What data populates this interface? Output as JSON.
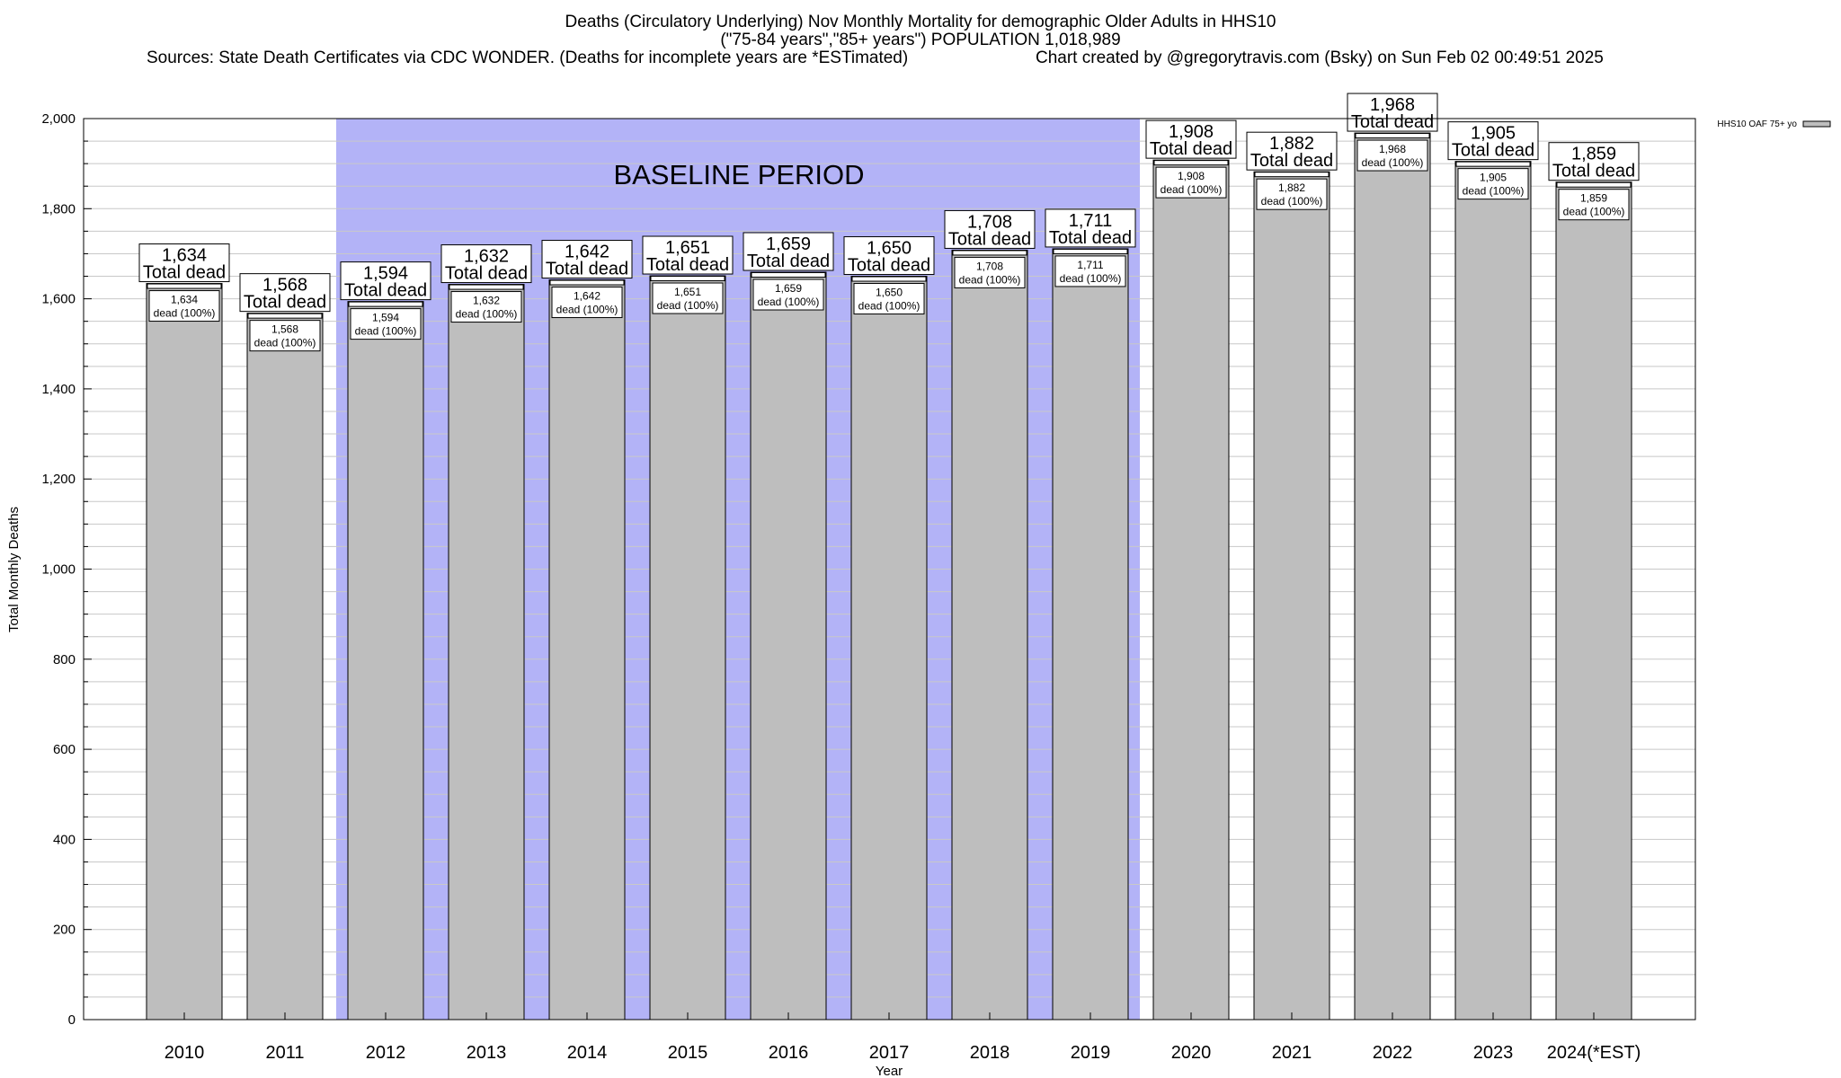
{
  "chart_data": {
    "type": "bar",
    "title": "Deaths (Circulatory Underlying) Nov Monthly Mortality for demographic Older Adults in HHS10",
    "subtitle": "(\"75-84 years\",\"85+ years\") POPULATION 1,018,989",
    "source_line": "Sources: State Death Certificates via CDC WONDER. (Deaths for incomplete years are *ESTimated)",
    "credit_line": "Chart created by @gregorytravis.com (Bsky) on Sun Feb 02 00:49:51 2025",
    "xlabel": "Year",
    "ylabel": "Total Monthly Deaths",
    "ylim": [
      0,
      2000
    ],
    "y_ticks": [
      0,
      200,
      400,
      600,
      800,
      1000,
      1200,
      1400,
      1600,
      1800,
      2000
    ],
    "y_tick_labels": [
      "0",
      "200",
      "400",
      "600",
      "800",
      "1,000",
      "1,200",
      "1,400",
      "1,600",
      "1,800",
      "2,000"
    ],
    "grid": true,
    "legend": {
      "label": "HHS10 OAF 75+ yo",
      "placement": "top-right outside"
    },
    "categories": [
      "2010",
      "2011",
      "2012",
      "2013",
      "2014",
      "2015",
      "2016",
      "2017",
      "2018",
      "2019",
      "2020",
      "2021",
      "2022",
      "2023",
      "2024(*EST)"
    ],
    "values": [
      1634,
      1568,
      1594,
      1632,
      1642,
      1651,
      1659,
      1650,
      1708,
      1711,
      1908,
      1882,
      1968,
      1905,
      1859
    ],
    "value_labels": [
      "1,634",
      "1,568",
      "1,594",
      "1,632",
      "1,642",
      "1,651",
      "1,659",
      "1,650",
      "1,708",
      "1,711",
      "1,908",
      "1,882",
      "1,968",
      "1,905",
      "1,859"
    ],
    "total_label_suffix": "Total dead",
    "inner_label_suffix": "dead (100%)",
    "baseline": {
      "label": "BASELINE PERIOD",
      "from": "2012",
      "to": "2019"
    },
    "colors": {
      "bar": "#bebebe",
      "baseline": "#b3b3f7",
      "grid": "#c8c8c8"
    }
  }
}
